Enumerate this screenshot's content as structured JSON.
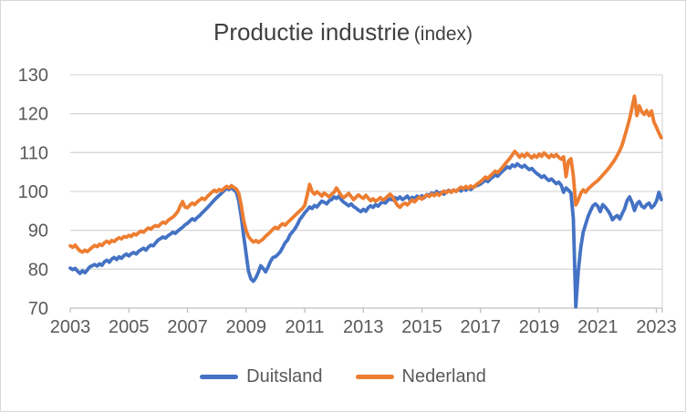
{
  "title": {
    "main": "Productie industrie",
    "suffix": "(index)"
  },
  "colors": {
    "duitsland": "#4472C4",
    "nederland": "#ED7D31",
    "grid": "#D9D9D9",
    "axis": "#BFBFBF",
    "tick_text": "#595959",
    "title_text": "#404040",
    "frame_border": "#D7D7D7"
  },
  "chart_data": {
    "type": "line",
    "title": "Productie industrie (index)",
    "grid": true,
    "legend_position": "bottom",
    "x_axis": {
      "start": 2003.0,
      "end": 2023.2,
      "points_per_year": 12,
      "tick_years": [
        2003,
        2005,
        2007,
        2009,
        2011,
        2013,
        2015,
        2017,
        2019,
        2021,
        2023
      ]
    },
    "y_axis": {
      "min": 70,
      "max": 130,
      "step": 10,
      "tick_labels": [
        70,
        80,
        90,
        100,
        110,
        120,
        130
      ]
    },
    "series": [
      {
        "name": "Duitsland",
        "color": "#4472C4",
        "start_year": 2003.0,
        "frequency": "monthly",
        "values": [
          80.3,
          79.9,
          80.2,
          79.5,
          78.9,
          79.6,
          79.1,
          79.8,
          80.6,
          80.9,
          81.2,
          80.8,
          81.4,
          81.0,
          81.9,
          82.3,
          81.8,
          82.6,
          83.0,
          82.5,
          83.2,
          82.8,
          83.5,
          83.9,
          83.4,
          84.0,
          84.3,
          83.9,
          84.6,
          85.0,
          85.4,
          84.9,
          85.7,
          86.2,
          86.0,
          86.8,
          87.5,
          87.9,
          88.3,
          88.0,
          88.6,
          89.0,
          89.5,
          89.2,
          89.8,
          90.3,
          90.8,
          91.4,
          91.8,
          92.4,
          93.0,
          92.6,
          93.3,
          93.8,
          94.5,
          95.1,
          95.7,
          96.4,
          97.1,
          97.8,
          98.4,
          99.0,
          99.6,
          100.2,
          100.9,
          100.5,
          101.0,
          100.4,
          99.8,
          97.6,
          93.6,
          88.6,
          84.0,
          79.5,
          77.5,
          76.9,
          77.8,
          79.2,
          80.9,
          80.2,
          79.3,
          80.6,
          82.0,
          83.0,
          83.2,
          83.8,
          84.5,
          85.6,
          86.8,
          87.5,
          88.9,
          89.6,
          90.4,
          91.5,
          92.8,
          93.6,
          94.5,
          95.2,
          96.0,
          95.6,
          96.4,
          96.0,
          96.8,
          97.5,
          97.2,
          96.8,
          97.6,
          97.9,
          98.6,
          98.2,
          98.8,
          97.8,
          97.2,
          96.8,
          96.3,
          96.8,
          96.1,
          95.7,
          95.2,
          94.8,
          95.4,
          94.9,
          95.8,
          96.3,
          95.9,
          96.6,
          96.2,
          96.9,
          97.3,
          97.0,
          97.7,
          98.1,
          97.8,
          98.4,
          98.0,
          98.6,
          97.9,
          98.3,
          98.8,
          97.9,
          98.5,
          98.2,
          98.8,
          98.4,
          98.9,
          98.4,
          99.2,
          99.0,
          99.6,
          99.2,
          100.0,
          99.4,
          99.8,
          99.3,
          99.9,
          100.3,
          99.8,
          100.4,
          100.0,
          100.6,
          100.1,
          100.8,
          100.3,
          100.9,
          100.5,
          101.0,
          101.4,
          101.6,
          101.9,
          102.4,
          102.9,
          102.5,
          103.2,
          103.7,
          104.3,
          103.9,
          104.6,
          105.2,
          105.8,
          106.3,
          106.0,
          106.8,
          106.4,
          107.1,
          106.6,
          106.2,
          106.7,
          106.1,
          105.6,
          105.9,
          105.2,
          104.6,
          104.2,
          103.6,
          104.0,
          103.3,
          102.8,
          103.2,
          102.6,
          102.0,
          102.4,
          101.6,
          99.8,
          100.9,
          100.3,
          99.6,
          93.0,
          70.3,
          79.5,
          85.5,
          89.5,
          91.5,
          93.5,
          95.0,
          96.3,
          96.8,
          96.2,
          94.8,
          96.6,
          96.0,
          95.2,
          94.2,
          92.7,
          93.4,
          93.8,
          92.9,
          94.3,
          95.6,
          97.6,
          98.6,
          97.2,
          95.1,
          96.8,
          97.4,
          96.2,
          95.8,
          96.6,
          97.0,
          95.8,
          96.4,
          97.5,
          99.8,
          97.9
        ]
      },
      {
        "name": "Nederland",
        "color": "#ED7D31",
        "start_year": 2003.0,
        "frequency": "monthly",
        "values": [
          86.0,
          85.6,
          86.2,
          85.4,
          84.7,
          84.4,
          84.9,
          84.5,
          85.1,
          85.6,
          86.1,
          85.8,
          86.4,
          86.1,
          86.8,
          87.2,
          86.7,
          87.4,
          87.1,
          87.7,
          88.1,
          87.8,
          88.4,
          88.2,
          88.7,
          88.4,
          89.1,
          88.8,
          89.4,
          89.8,
          89.5,
          90.1,
          90.6,
          90.3,
          90.9,
          91.2,
          91.0,
          91.6,
          92.1,
          91.8,
          92.5,
          93.0,
          93.4,
          94.0,
          94.8,
          96.2,
          97.4,
          96.0,
          95.8,
          96.5,
          97.0,
          96.6,
          97.3,
          97.8,
          98.3,
          97.9,
          98.6,
          99.2,
          99.8,
          100.3,
          99.9,
          100.5,
          100.2,
          100.8,
          101.3,
          100.9,
          101.5,
          101.0,
          100.6,
          99.5,
          96.5,
          92.5,
          90.0,
          88.4,
          87.6,
          87.0,
          87.4,
          86.9,
          87.3,
          87.8,
          88.5,
          89.0,
          89.6,
          90.3,
          90.8,
          90.4,
          91.2,
          91.7,
          91.3,
          92.0,
          92.6,
          93.2,
          93.8,
          94.4,
          95.0,
          95.6,
          96.4,
          99.0,
          101.8,
          100.0,
          99.3,
          99.9,
          99.4,
          98.8,
          99.6,
          99.1,
          98.6,
          99.3,
          99.8,
          100.9,
          99.9,
          98.9,
          98.4,
          98.9,
          99.5,
          98.7,
          97.9,
          98.5,
          99.1,
          98.6,
          98.2,
          99.0,
          98.3,
          97.6,
          98.1,
          97.5,
          97.9,
          98.4,
          97.8,
          98.2,
          98.8,
          99.3,
          98.6,
          97.4,
          96.4,
          95.9,
          96.6,
          97.0,
          96.5,
          97.2,
          97.8,
          97.3,
          98.0,
          98.5,
          98.0,
          98.6,
          99.1,
          98.7,
          99.3,
          98.9,
          99.5,
          99.0,
          99.6,
          100.1,
          99.7,
          100.2,
          99.8,
          100.4,
          100.0,
          100.6,
          101.1,
          100.7,
          101.3,
          100.8,
          101.4,
          101.0,
          101.6,
          102.1,
          102.5,
          103.1,
          103.7,
          103.3,
          104.0,
          104.6,
          105.2,
          104.8,
          105.5,
          106.2,
          107.0,
          107.8,
          108.5,
          109.4,
          110.3,
          109.6,
          108.8,
          109.5,
          108.9,
          109.8,
          109.2,
          108.6,
          109.3,
          108.8,
          109.6,
          109.0,
          109.9,
          109.3,
          108.7,
          109.4,
          108.9,
          109.5,
          108.8,
          108.3,
          108.9,
          103.8,
          107.8,
          108.4,
          104.0,
          96.5,
          97.8,
          99.5,
          100.4,
          99.8,
          100.6,
          101.2,
          101.8,
          102.3,
          102.8,
          103.5,
          104.2,
          104.9,
          105.6,
          106.4,
          107.3,
          108.2,
          109.3,
          110.5,
          112.0,
          114.2,
          116.3,
          118.6,
          121.5,
          124.5,
          119.5,
          122.0,
          120.5,
          119.8,
          120.8,
          119.5,
          120.7,
          117.8,
          116.5,
          115.0,
          113.8
        ]
      }
    ]
  }
}
